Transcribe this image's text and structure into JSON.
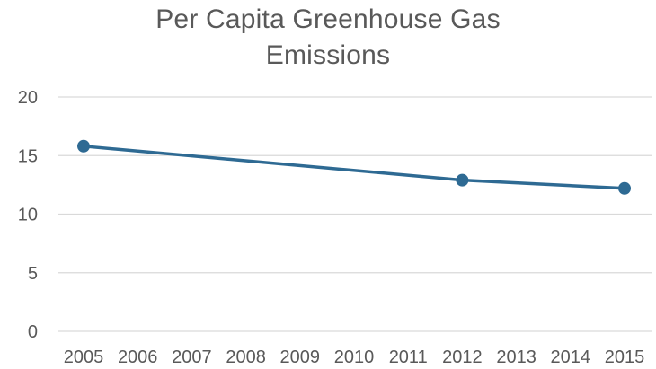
{
  "chart_data": {
    "type": "line",
    "title": [
      "Per Capita Greenhouse Gas",
      "Emissions"
    ],
    "xlabel": "",
    "ylabel": "",
    "categories": [
      "2005",
      "2006",
      "2007",
      "2008",
      "2009",
      "2010",
      "2011",
      "2012",
      "2013",
      "2014",
      "2015"
    ],
    "ylim": [
      0,
      20
    ],
    "yticks": [
      "0",
      "5",
      "10",
      "15",
      "20"
    ],
    "grid": true,
    "legend": "none",
    "series": [
      {
        "color": "#2e6a93",
        "points": [
          {
            "x": "2005",
            "y": 15.8
          },
          {
            "x": "2012",
            "y": 12.9
          },
          {
            "x": "2015",
            "y": 12.2
          }
        ]
      }
    ]
  }
}
